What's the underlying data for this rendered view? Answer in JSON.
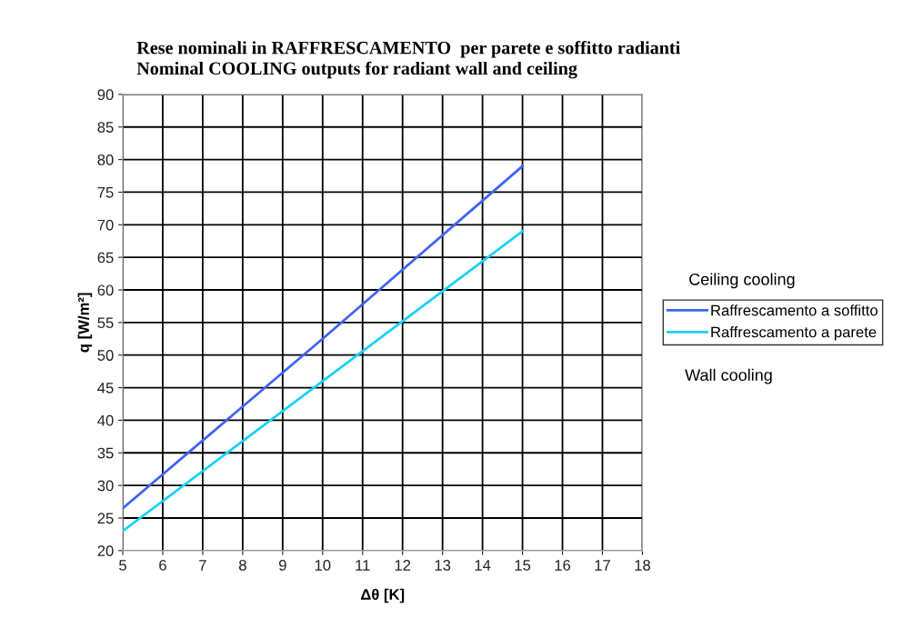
{
  "chart_data": {
    "type": "line",
    "title": "Rese nominali in RAFFRESCAMENTO  per parete e soffitto radianti\nNominal COOLING outputs for radiant wall and ceiling",
    "xlabel": "Δθ [K]",
    "ylabel": "q [W/m²]",
    "x": [
      5,
      10,
      15
    ],
    "series": [
      {
        "name": "Raffrescamento a soffitto",
        "color": "#3f64f0",
        "values": [
          26.5,
          52.5,
          79
        ]
      },
      {
        "name": "Raffrescamento a parete",
        "color": "#1ad2f5",
        "values": [
          23,
          46,
          69
        ]
      }
    ],
    "xlim": [
      5,
      18
    ],
    "xticks": [
      5,
      6,
      7,
      8,
      9,
      10,
      11,
      12,
      13,
      14,
      15,
      16,
      17,
      18
    ],
    "ylim": [
      20,
      90
    ],
    "yticks": [
      20,
      25,
      30,
      35,
      40,
      45,
      50,
      55,
      60,
      65,
      70,
      75,
      80,
      85,
      90
    ],
    "grid": true,
    "legend": "right",
    "marker": "none",
    "line_style": "solid",
    "annotations": [
      "Ceiling cooling",
      "Wall cooling"
    ]
  }
}
